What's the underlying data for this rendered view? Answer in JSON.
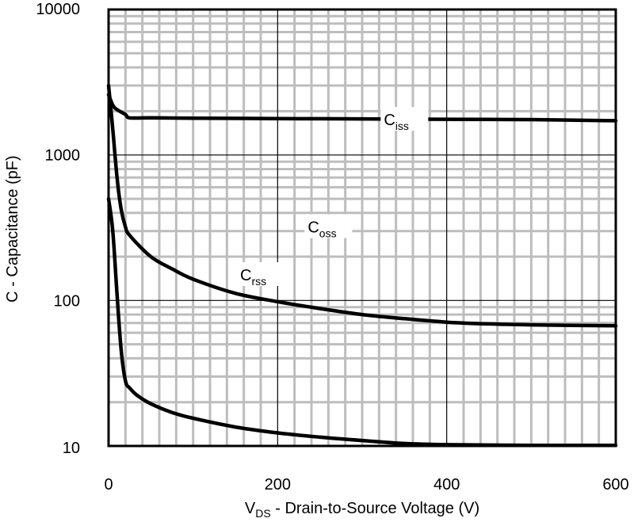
{
  "chart_data": {
    "type": "line",
    "title": "",
    "xlabel": {
      "main": "V",
      "sub": "DS",
      "rest": " - Drain-to-Source Voltage (V)"
    },
    "ylabel": "C - Capacitance (pF)",
    "xlim": [
      0,
      600
    ],
    "ylim": [
      10,
      10000
    ],
    "yscale": "log",
    "grid": true,
    "x_ticks": [
      0,
      200,
      400,
      600
    ],
    "x_tick_labels": [
      "0",
      "200",
      "400",
      "600"
    ],
    "y_ticks": [
      10,
      100,
      1000,
      10000
    ],
    "y_tick_labels": [
      "10",
      "100",
      "1000",
      "10000"
    ],
    "series": [
      {
        "name": "Ciss",
        "label": {
          "main": "C",
          "sub": "iss"
        },
        "label_at": [
          350,
          1750
        ],
        "x": [
          0,
          5,
          10,
          20,
          25,
          50,
          100,
          200,
          300,
          400,
          500,
          600
        ],
        "y": [
          2600,
          2200,
          2050,
          1900,
          1800,
          1800,
          1790,
          1780,
          1770,
          1760,
          1750,
          1720
        ]
      },
      {
        "name": "Coss",
        "label": {
          "main": "C",
          "sub": "oss"
        },
        "label_at": [
          260,
          320
        ],
        "x": [
          0,
          5,
          10,
          15,
          20,
          25,
          50,
          75,
          100,
          150,
          200,
          250,
          300,
          350,
          400,
          450,
          500,
          600
        ],
        "y": [
          3000,
          1500,
          700,
          420,
          320,
          280,
          200,
          165,
          140,
          112,
          98,
          88,
          80,
          75,
          71,
          69,
          68,
          67
        ]
      },
      {
        "name": "Crss",
        "label": {
          "main": "C",
          "sub": "rss"
        },
        "label_at": [
          180,
          150
        ],
        "x": [
          0,
          5,
          10,
          15,
          20,
          25,
          35,
          50,
          75,
          100,
          150,
          200,
          250,
          300,
          350,
          400,
          500,
          600
        ],
        "y": [
          500,
          300,
          110,
          45,
          28,
          25,
          22,
          19.5,
          17,
          15.5,
          13.5,
          12.3,
          11.5,
          10.9,
          10.4,
          10.2,
          10.1,
          10.1
        ]
      }
    ]
  }
}
